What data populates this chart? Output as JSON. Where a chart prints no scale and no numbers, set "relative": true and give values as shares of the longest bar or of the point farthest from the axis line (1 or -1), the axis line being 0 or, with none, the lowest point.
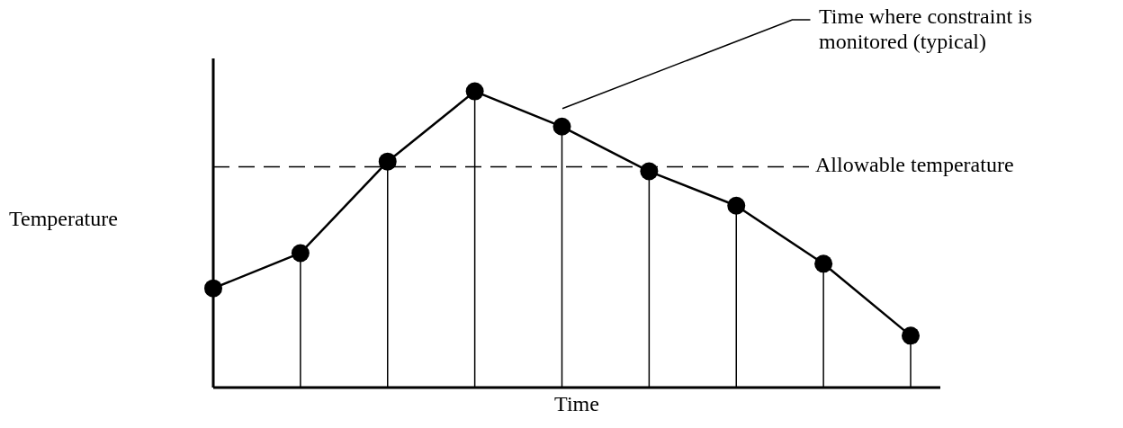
{
  "chart_data": {
    "type": "line",
    "relative": true,
    "xlabel": "Time",
    "ylabel": "Temperature",
    "categories": [
      null,
      null,
      null,
      null,
      null,
      null,
      null,
      null,
      null
    ],
    "series": [
      {
        "color": "#000000",
        "values": [
          0.335,
          0.454,
          0.763,
          1,
          0.881,
          0.73,
          0.614,
          0.418,
          0.175
        ]
      }
    ],
    "marker": "circle",
    "line_style": "solid",
    "ref_lines": [
      {
        "axis": "y",
        "value": 0.745,
        "label": "Allowable temperature",
        "line_style": "dashed",
        "color": "#000000"
      }
    ],
    "annotations": [
      "Time where constraint is monitored (typical)"
    ],
    "grid": "x",
    "legend": false,
    "tick_labels": false
  }
}
